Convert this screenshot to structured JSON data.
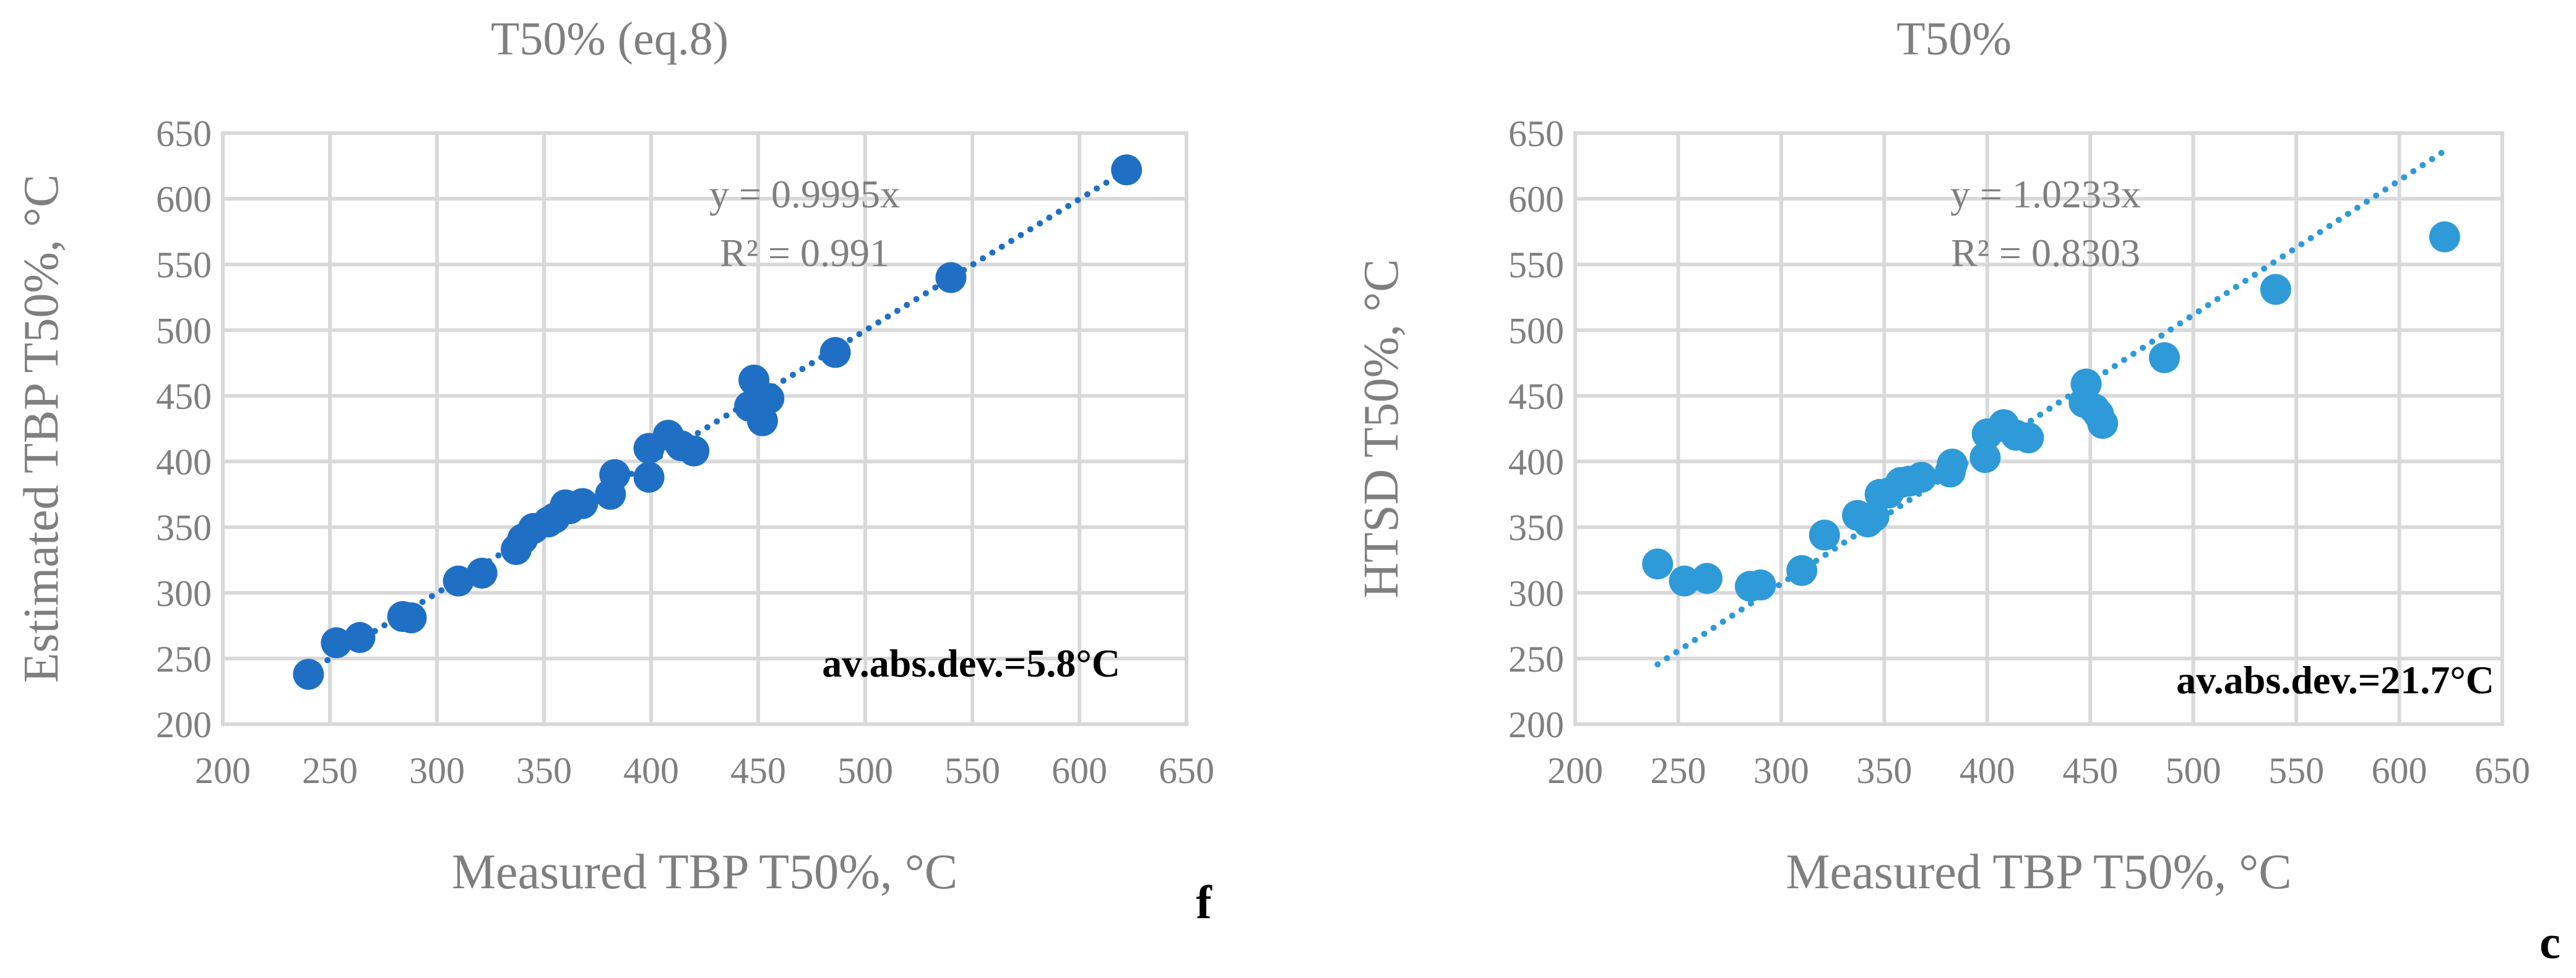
{
  "chart_data": [
    {
      "type": "scatter",
      "title": "T50% (eq.8)",
      "xlabel": "Measured TBP T50%, °C",
      "ylabel": "Estimated TBP T50%, °C",
      "xlim": [
        200,
        650
      ],
      "ylim": [
        200,
        650
      ],
      "x_ticks": [
        "200",
        "250",
        "300",
        "350",
        "400",
        "450",
        "500",
        "550",
        "600",
        "650"
      ],
      "y_ticks": [
        "200",
        "250",
        "300",
        "350",
        "400",
        "450",
        "500",
        "550",
        "600",
        "650"
      ],
      "grid": true,
      "color": "#1f6fc5",
      "trendline": {
        "slope": 0.9995,
        "x_range": [
          240,
          622
        ],
        "style": "dotted"
      },
      "equation": "y = 0.9995x",
      "r_squared": "R² = 0.991",
      "annotation": "av.abs.dev.=5.8°C",
      "panel_label": "f",
      "points": [
        [
          240,
          238
        ],
        [
          253,
          262
        ],
        [
          264,
          266
        ],
        [
          284,
          282
        ],
        [
          288,
          281
        ],
        [
          310,
          309
        ],
        [
          321,
          315
        ],
        [
          337,
          333
        ],
        [
          340,
          341
        ],
        [
          345,
          349
        ],
        [
          352,
          354
        ],
        [
          355,
          357
        ],
        [
          360,
          367
        ],
        [
          362,
          364
        ],
        [
          368,
          368
        ],
        [
          381,
          375
        ],
        [
          383,
          390
        ],
        [
          399,
          388
        ],
        [
          399,
          410
        ],
        [
          408,
          420
        ],
        [
          414,
          412
        ],
        [
          420,
          408
        ],
        [
          446,
          442
        ],
        [
          448,
          462
        ],
        [
          450,
          447
        ],
        [
          452,
          431
        ],
        [
          455,
          448
        ],
        [
          486,
          483
        ],
        [
          540,
          540
        ],
        [
          622,
          622
        ]
      ]
    },
    {
      "type": "scatter",
      "title": "T50%",
      "xlabel": "Measured TBP T50%, °C",
      "ylabel": "HTSD T50%, °C",
      "xlim": [
        200,
        650
      ],
      "ylim": [
        200,
        650
      ],
      "x_ticks": [
        "200",
        "250",
        "300",
        "350",
        "400",
        "450",
        "500",
        "550",
        "600",
        "650"
      ],
      "y_ticks": [
        "200",
        "250",
        "300",
        "350",
        "400",
        "450",
        "500",
        "550",
        "600",
        "650"
      ],
      "grid": true,
      "color": "#2e9ad8",
      "trendline": {
        "slope": 1.0233,
        "x_range": [
          240,
          622
        ],
        "style": "dotted"
      },
      "equation": "y = 1.0233x",
      "r_squared": "R² = 0.8303",
      "annotation": "av.abs.dev.=21.7°C",
      "panel_label": "c",
      "points": [
        [
          240,
          322
        ],
        [
          253,
          309
        ],
        [
          264,
          311
        ],
        [
          285,
          305
        ],
        [
          290,
          306
        ],
        [
          310,
          317
        ],
        [
          321,
          344
        ],
        [
          337,
          359
        ],
        [
          342,
          354
        ],
        [
          345,
          358
        ],
        [
          348,
          375
        ],
        [
          352,
          376
        ],
        [
          358,
          384
        ],
        [
          362,
          385
        ],
        [
          368,
          388
        ],
        [
          382,
          392
        ],
        [
          383,
          398
        ],
        [
          399,
          403
        ],
        [
          400,
          421
        ],
        [
          408,
          428
        ],
        [
          414,
          420
        ],
        [
          420,
          418
        ],
        [
          447,
          445
        ],
        [
          448,
          459
        ],
        [
          452,
          440
        ],
        [
          454,
          436
        ],
        [
          456,
          429
        ],
        [
          486,
          479
        ],
        [
          540,
          531
        ],
        [
          622,
          571
        ]
      ]
    }
  ]
}
